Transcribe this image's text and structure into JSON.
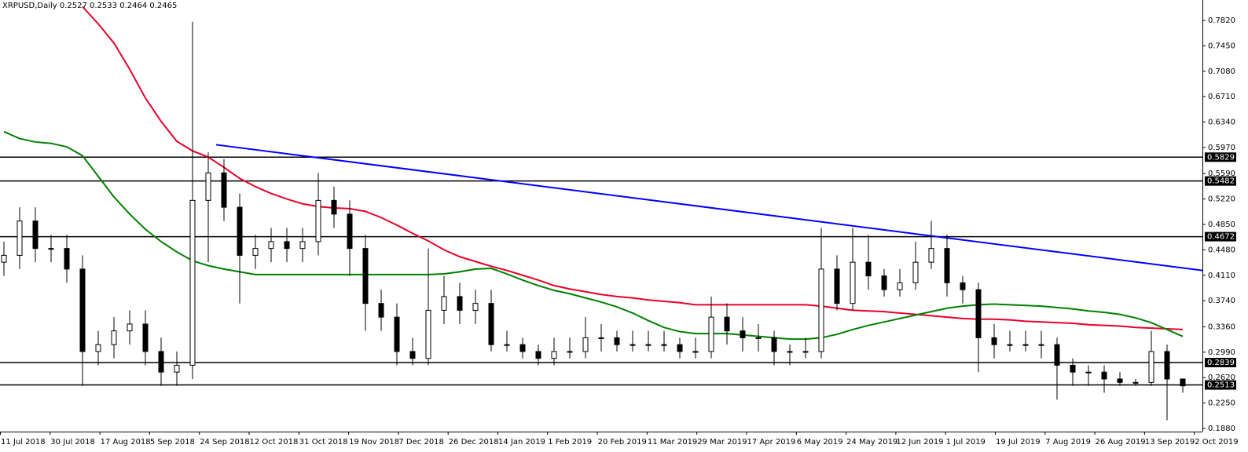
{
  "chart_data": {
    "type": "candlestick",
    "title": "XRPUSD,Daily  0.2527 0.2533 0.2464 0.2465",
    "date_labels": [
      "11 Jul 2018",
      "30 Jul 2018",
      "17 Aug 2018",
      "5 Sep 2018",
      "24 Sep 2018",
      "12 Oct 2018",
      "31 Oct 2018",
      "19 Nov 2018",
      "7 Dec 2018",
      "26 Dec 2018",
      "14 Jan 2019",
      "1 Feb 2019",
      "20 Feb 2019",
      "11 Mar 2019",
      "29 Mar 2019",
      "17 Apr 2019",
      "6 May 2019",
      "24 May 2019",
      "12 Jun 2019",
      "1 Jul 2019",
      "19 Jul 2019",
      "7 Aug 2019",
      "26 Aug 2019",
      "13 Sep 2019",
      "2 Oct 2019"
    ],
    "open": [
      0.43,
      0.44,
      0.49,
      0.45,
      0.45,
      0.42,
      0.3,
      0.31,
      0.33,
      0.34,
      0.3,
      0.27,
      0.28,
      0.52,
      0.56,
      0.51,
      0.44,
      0.45,
      0.46,
      0.45,
      0.46,
      0.52,
      0.5,
      0.45,
      0.37,
      0.35,
      0.3,
      0.29,
      0.36,
      0.38,
      0.36,
      0.37,
      0.31,
      0.31,
      0.3,
      0.29,
      0.3,
      0.3,
      0.32,
      0.32,
      0.31,
      0.31,
      0.31,
      0.31,
      0.3,
      0.3,
      0.35,
      0.33,
      0.32,
      0.32,
      0.3,
      0.3,
      0.3,
      0.42,
      0.37,
      0.43,
      0.41,
      0.39,
      0.4,
      0.43,
      0.45,
      0.4,
      0.39,
      0.32,
      0.31,
      0.31,
      0.31,
      0.31,
      0.28,
      0.27,
      0.27,
      0.26,
      0.255,
      0.255,
      0.3,
      0.26
    ],
    "high": [
      0.46,
      0.51,
      0.51,
      0.47,
      0.47,
      0.44,
      0.33,
      0.35,
      0.36,
      0.36,
      0.32,
      0.3,
      0.78,
      0.59,
      0.58,
      0.53,
      0.47,
      0.48,
      0.48,
      0.48,
      0.56,
      0.54,
      0.52,
      0.47,
      0.39,
      0.37,
      0.32,
      0.45,
      0.41,
      0.4,
      0.39,
      0.39,
      0.33,
      0.32,
      0.31,
      0.32,
      0.32,
      0.35,
      0.34,
      0.33,
      0.33,
      0.33,
      0.33,
      0.32,
      0.32,
      0.38,
      0.37,
      0.35,
      0.34,
      0.33,
      0.31,
      0.32,
      0.48,
      0.44,
      0.48,
      0.47,
      0.42,
      0.42,
      0.46,
      0.49,
      0.47,
      0.41,
      0.4,
      0.34,
      0.33,
      0.33,
      0.33,
      0.32,
      0.29,
      0.28,
      0.28,
      0.27,
      0.26,
      0.33,
      0.31,
      0.26
    ],
    "low": [
      0.41,
      0.42,
      0.43,
      0.43,
      0.4,
      0.25,
      0.28,
      0.29,
      0.31,
      0.28,
      0.25,
      0.25,
      0.26,
      0.43,
      0.49,
      0.37,
      0.42,
      0.43,
      0.43,
      0.43,
      0.44,
      0.48,
      0.41,
      0.33,
      0.33,
      0.28,
      0.28,
      0.28,
      0.34,
      0.34,
      0.34,
      0.3,
      0.3,
      0.29,
      0.28,
      0.28,
      0.29,
      0.29,
      0.3,
      0.3,
      0.3,
      0.3,
      0.3,
      0.29,
      0.29,
      0.29,
      0.31,
      0.3,
      0.3,
      0.28,
      0.28,
      0.29,
      0.29,
      0.36,
      0.36,
      0.39,
      0.38,
      0.38,
      0.39,
      0.42,
      0.38,
      0.37,
      0.27,
      0.29,
      0.3,
      0.3,
      0.29,
      0.23,
      0.25,
      0.25,
      0.24,
      0.25,
      0.25,
      0.25,
      0.2,
      0.24
    ],
    "close": [
      0.44,
      0.49,
      0.45,
      0.45,
      0.42,
      0.3,
      0.31,
      0.33,
      0.34,
      0.3,
      0.27,
      0.28,
      0.52,
      0.56,
      0.51,
      0.44,
      0.45,
      0.46,
      0.45,
      0.46,
      0.52,
      0.5,
      0.45,
      0.37,
      0.35,
      0.3,
      0.29,
      0.36,
      0.38,
      0.36,
      0.37,
      0.31,
      0.31,
      0.3,
      0.29,
      0.3,
      0.3,
      0.32,
      0.32,
      0.31,
      0.31,
      0.31,
      0.31,
      0.3,
      0.3,
      0.35,
      0.33,
      0.32,
      0.32,
      0.3,
      0.3,
      0.3,
      0.42,
      0.37,
      0.43,
      0.41,
      0.39,
      0.4,
      0.43,
      0.45,
      0.4,
      0.39,
      0.32,
      0.31,
      0.31,
      0.31,
      0.31,
      0.28,
      0.27,
      0.27,
      0.26,
      0.255,
      0.255,
      0.3,
      0.26,
      0.25
    ],
    "series": [
      {
        "color": "#e8002a",
        "values": [
          null,
          null,
          null,
          null,
          null,
          0.802,
          0.777,
          0.749,
          0.711,
          0.669,
          0.635,
          0.606,
          0.592,
          0.583,
          0.568,
          0.552,
          0.54,
          0.53,
          0.522,
          0.515,
          0.511,
          0.509,
          0.508,
          0.504,
          0.495,
          0.484,
          0.472,
          0.461,
          0.448,
          0.438,
          0.431,
          0.424,
          0.418,
          0.411,
          0.404,
          0.396,
          0.391,
          0.387,
          0.383,
          0.38,
          0.378,
          0.375,
          0.373,
          0.371,
          0.368,
          0.368,
          0.368,
          0.368,
          0.368,
          0.368,
          0.368,
          0.368,
          0.366,
          0.363,
          0.36,
          0.359,
          0.358,
          0.356,
          0.354,
          0.352,
          0.35,
          0.348,
          0.347,
          0.347,
          0.346,
          0.344,
          0.343,
          0.342,
          0.341,
          0.339,
          0.338,
          0.337,
          0.335,
          0.334,
          0.333,
          0.332
        ]
      },
      {
        "color": "#008000",
        "values": [
          0.62,
          0.61,
          0.605,
          0.603,
          0.598,
          0.585,
          0.555,
          0.525,
          0.5,
          0.478,
          0.46,
          0.445,
          0.432,
          0.425,
          0.42,
          0.416,
          0.412,
          0.412,
          0.412,
          0.412,
          0.412,
          0.412,
          0.412,
          0.412,
          0.412,
          0.412,
          0.412,
          0.412,
          0.413,
          0.416,
          0.42,
          0.421,
          0.413,
          0.404,
          0.396,
          0.389,
          0.384,
          0.378,
          0.372,
          0.365,
          0.356,
          0.345,
          0.335,
          0.329,
          0.326,
          0.326,
          0.326,
          0.324,
          0.322,
          0.32,
          0.318,
          0.318,
          0.32,
          0.325,
          0.332,
          0.338,
          0.343,
          0.348,
          0.353,
          0.358,
          0.363,
          0.366,
          0.368,
          0.369,
          0.368,
          0.367,
          0.366,
          0.364,
          0.362,
          0.359,
          0.357,
          0.354,
          0.349,
          0.342,
          0.332,
          0.322
        ]
      }
    ],
    "trendline": {
      "color": "#0000ff",
      "values": [
        0.601,
        0.418
      ]
    },
    "levels": [
      {
        "value": 0.5829,
        "label": "0.5829"
      },
      {
        "value": 0.5482,
        "label": "0.5482"
      },
      {
        "value": 0.4672,
        "label": "0.4672"
      },
      {
        "value": 0.2839,
        "label": "0.2839"
      },
      {
        "value": 0.2513,
        "label": "0.2513"
      }
    ],
    "ylim": [
      0.1834,
      0.8117
    ],
    "yticks": [
      {
        "value": 0.782,
        "label": "0.7820"
      },
      {
        "value": 0.745,
        "label": "0.7450"
      },
      {
        "value": 0.708,
        "label": "0.7080"
      },
      {
        "value": 0.671,
        "label": "0.6710"
      },
      {
        "value": 0.634,
        "label": "0.6340"
      },
      {
        "value": 0.597,
        "label": "0.5970"
      },
      {
        "value": 0.559,
        "label": "0.5590"
      },
      {
        "value": 0.522,
        "label": "0.5220"
      },
      {
        "value": 0.485,
        "label": "0.4850"
      },
      {
        "value": 0.448,
        "label": "0.4480"
      },
      {
        "value": 0.411,
        "label": "0.4110"
      },
      {
        "value": 0.374,
        "label": "0.3740"
      },
      {
        "value": 0.336,
        "label": "0.3360"
      },
      {
        "value": 0.299,
        "label": "0.2990"
      },
      {
        "value": 0.262,
        "label": "0.2620"
      },
      {
        "value": 0.225,
        "label": "0.2250"
      },
      {
        "value": 0.188,
        "label": "0.1880"
      }
    ],
    "grid": false
  }
}
